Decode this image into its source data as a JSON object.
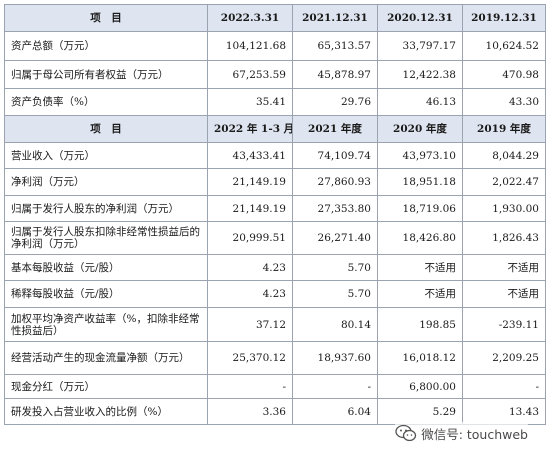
{
  "table": {
    "header1": [
      "项　目",
      "2022.3.31",
      "2021.12.31",
      "2020.12.31",
      "2019.12.31"
    ],
    "rows1": [
      {
        "label": "资产总额（万元）",
        "values": [
          "104,121.68",
          "65,313.57",
          "33,797.17",
          "10,624.52"
        ]
      },
      {
        "label": "归属于母公司所有者权益（万元）",
        "values": [
          "67,253.59",
          "45,878.97",
          "12,422.38",
          "470.98"
        ]
      },
      {
        "label": "资产负债率（%）",
        "values": [
          "35.41",
          "29.76",
          "46.13",
          "43.30"
        ]
      }
    ],
    "header2": [
      "项　目",
      "2022 年 1-3 月",
      "2021 年度",
      "2020 年度",
      "2019 年度"
    ],
    "rows2": [
      {
        "label": "营业收入（万元）",
        "values": [
          "43,433.41",
          "74,109.74",
          "43,973.10",
          "8,044.29"
        ]
      },
      {
        "label": "净利润（万元）",
        "values": [
          "21,149.19",
          "27,860.93",
          "18,951.18",
          "2,022.47"
        ]
      },
      {
        "label": "归属于发行人股东的净利润（万元）",
        "values": [
          "21,149.19",
          "27,353.80",
          "18,719.06",
          "1,930.00"
        ]
      },
      {
        "label": "归属于发行人股东扣除非经常性损益后的净利润（万元）",
        "values": [
          "20,999.51",
          "26,271.40",
          "18,426.80",
          "1,826.43"
        ]
      },
      {
        "label": "基本每股收益（元/股）",
        "values": [
          "4.23",
          "5.70",
          "不适用",
          "不适用"
        ]
      },
      {
        "label": "稀释每股收益（元/股）",
        "values": [
          "4.23",
          "5.70",
          "不适用",
          "不适用"
        ]
      },
      {
        "label": "加权平均净资产收益率（%，扣除非经常性损益后）",
        "values": [
          "37.12",
          "80.14",
          "198.85",
          "-239.11"
        ]
      },
      {
        "label": "经营活动产生的现金流量净额（万元）",
        "values": [
          "25,370.12",
          "18,937.60",
          "16,018.12",
          "2,209.25"
        ]
      },
      {
        "label": "现金分红（万元）",
        "values": [
          "-",
          "-",
          "6,800.00",
          "-"
        ]
      },
      {
        "label": "研发投入占营业收入的比例（%）",
        "values": [
          "3.36",
          "6.04",
          "5.29",
          "13.43"
        ]
      }
    ]
  },
  "watermark": {
    "icon": "wechat-icon",
    "text": "微信号: touchweb"
  }
}
